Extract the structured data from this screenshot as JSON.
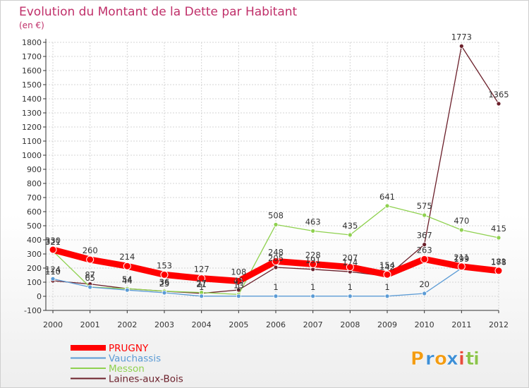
{
  "chart_data": {
    "type": "line",
    "title": "Evolution du Montant de la Dette par Habitant",
    "subtitle": "(en €)",
    "x": [
      "2000",
      "2001",
      "2002",
      "2003",
      "2004",
      "2005",
      "2006",
      "2007",
      "2008",
      "2009",
      "2010",
      "2011",
      "2012"
    ],
    "ylim": [
      -100,
      1800
    ],
    "yticks": [
      -100,
      0,
      100,
      200,
      300,
      400,
      500,
      600,
      700,
      800,
      900,
      1000,
      1100,
      1200,
      1300,
      1400,
      1500,
      1600,
      1700,
      1800
    ],
    "grid": true,
    "legend": "bottom-left",
    "series": [
      {
        "name": "PRUGNY",
        "color": "#ff0000",
        "values": [
          330,
          260,
          214,
          153,
          127,
          108,
          248,
          228,
          207,
          154,
          263,
          211,
          181
        ],
        "labels": [
          "330",
          "260",
          "214",
          "153",
          "127",
          "108",
          "248",
          "228",
          "207",
          "154",
          "263",
          "211",
          "181"
        ]
      },
      {
        "name": "Vauchassis",
        "color": "#5b9bd5",
        "values": [
          124,
          65,
          44,
          25,
          1,
          1,
          1,
          1,
          1,
          1,
          20,
          199,
          178
        ],
        "labels": [
          "124",
          "",
          "44",
          "25",
          "1",
          "1",
          "1",
          "1",
          "1",
          "1",
          "20",
          "199",
          "178"
        ]
      },
      {
        "name": "Messon",
        "color": "#8fd14f",
        "values": [
          321,
          65,
          54,
          36,
          27,
          13,
          508,
          463,
          435,
          641,
          575,
          470,
          415
        ],
        "labels": [
          "321",
          "65",
          "54",
          "36",
          "27",
          "13",
          "508",
          "463",
          "435",
          "641",
          "575",
          "470",
          "415"
        ]
      },
      {
        "name": "Laines-aux-Bois",
        "color": "#6b1f2a",
        "values": [
          110,
          87,
          54,
          36,
          21,
          45,
          205,
          191,
          174,
          142,
          367,
          1773,
          1365
        ],
        "labels": [
          "110",
          "87",
          "54",
          "36",
          "21",
          "45",
          "205",
          "191",
          "174",
          "142",
          "367",
          "1773",
          "1365"
        ]
      }
    ]
  },
  "logo": {
    "text": "Proxiti",
    "letters": [
      "P",
      "r",
      "o",
      "x",
      "i",
      "t",
      "i"
    ],
    "colors": [
      "#f39c12",
      "#3d8fd6",
      "#f39c12",
      "#3d8fd6",
      "#e74c3c",
      "#8bc34a",
      "#8bc34a"
    ]
  }
}
